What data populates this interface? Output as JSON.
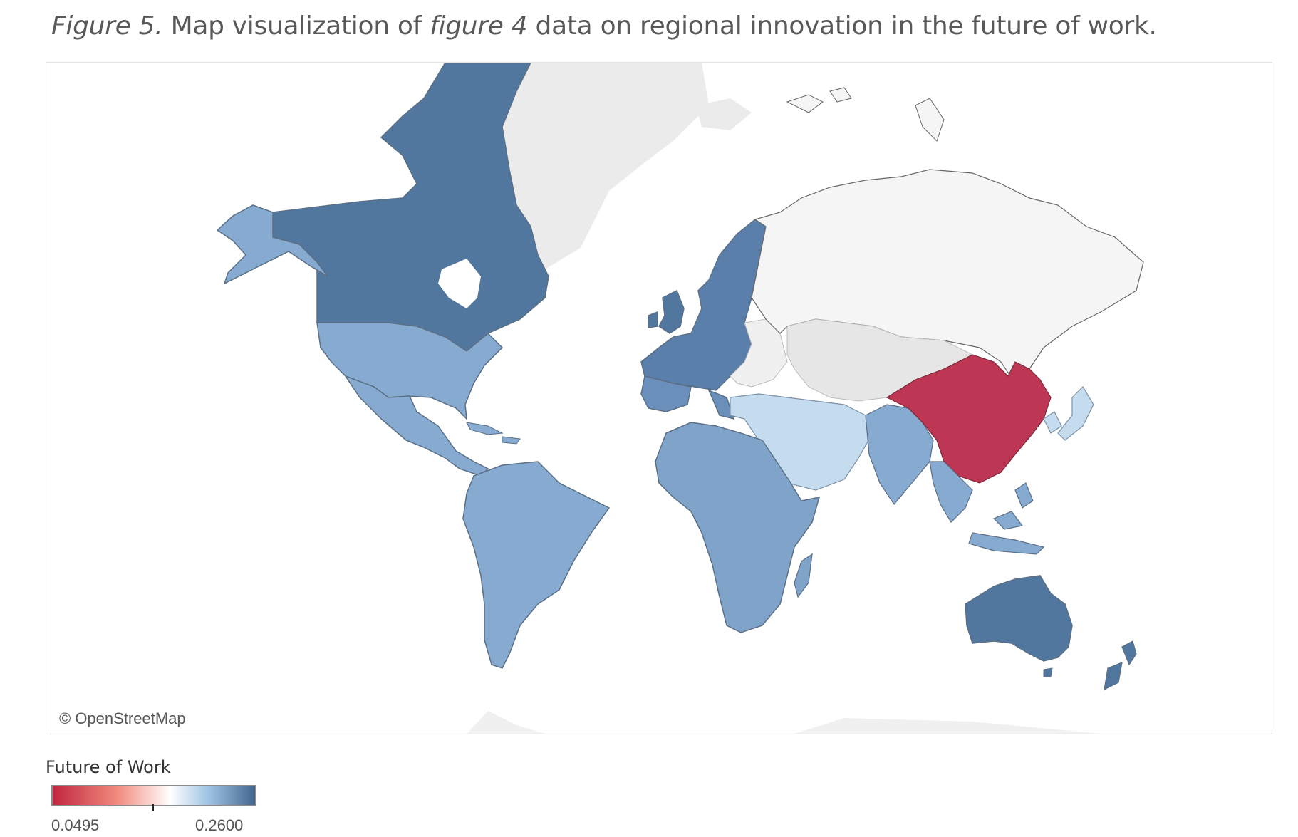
{
  "caption": {
    "figure_label": "Figure 5.",
    "text_before": " Map visualization of ",
    "figure_ref": "figure 4",
    "text_after": " data on regional innovation in the future of work."
  },
  "map": {
    "attribution": "© OpenStreetMap",
    "colors": {
      "high": "#52779f",
      "mid": "#86aad0",
      "light": "#c5dcee",
      "neutral": "#f5f5f5",
      "nodata": "#ebebeb",
      "low": "#bd3654"
    }
  },
  "legend": {
    "title": "Future of Work",
    "min_label": "0.0495",
    "max_label": "0.2600",
    "color_low": "#c0263f",
    "color_mid": "#ffffff",
    "color_high": "#43668f",
    "midpoint_fraction": 0.58
  },
  "chart_data": {
    "type": "choropleth",
    "measure": "Future of Work",
    "scale": {
      "min": 0.0495,
      "max": 0.26
    },
    "regions": [
      {
        "name": "Canada",
        "value": 0.24
      },
      {
        "name": "Northern & Western Europe",
        "value": 0.235
      },
      {
        "name": "Australia & New Zealand",
        "value": 0.245
      },
      {
        "name": "United States",
        "value": 0.2
      },
      {
        "name": "Latin America",
        "value": 0.2
      },
      {
        "name": "Africa",
        "value": 0.2
      },
      {
        "name": "South & Southeast Asia",
        "value": 0.2
      },
      {
        "name": "Middle East & Central Asia",
        "value": 0.18
      },
      {
        "name": "Japan & Korea",
        "value": 0.18
      },
      {
        "name": "Russia",
        "value": 0.17
      },
      {
        "name": "China",
        "value": 0.0495
      }
    ]
  }
}
